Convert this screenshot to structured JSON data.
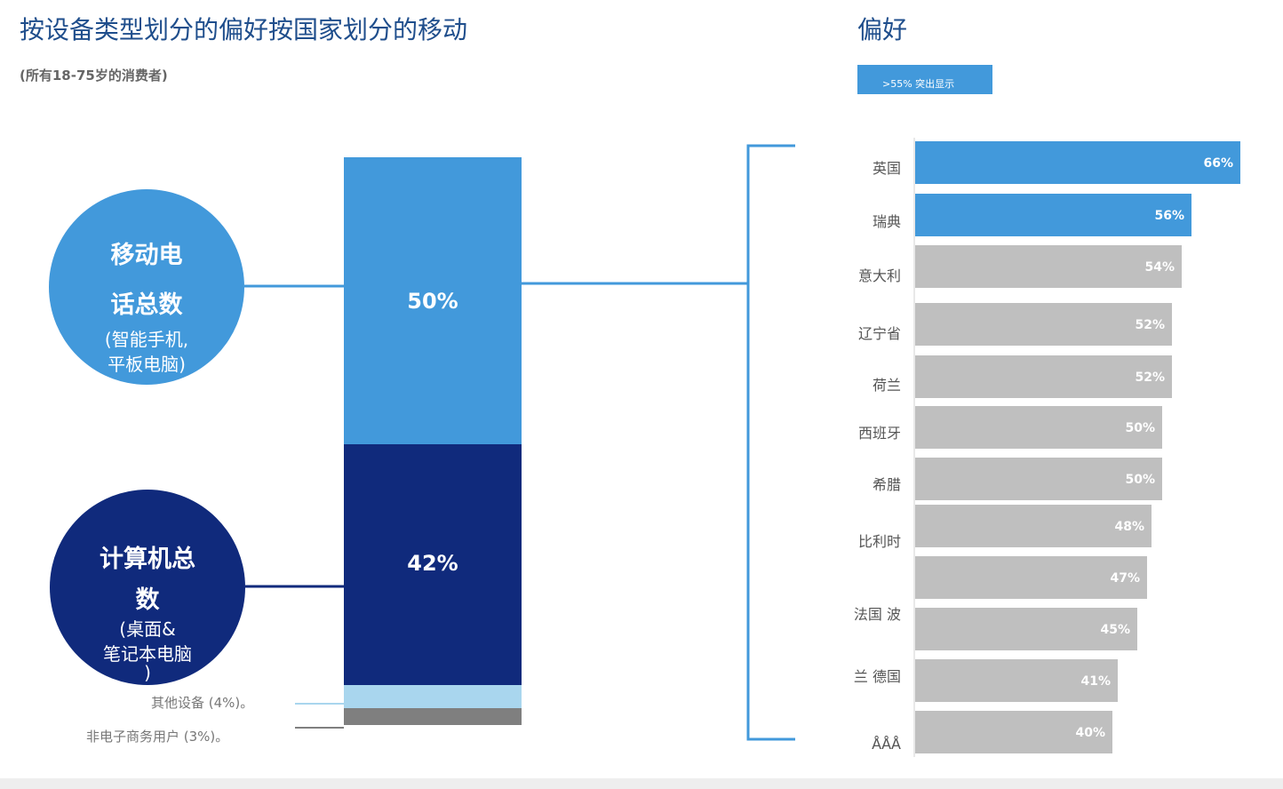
{
  "header": {
    "title_left": "按设备类型划分的偏好按国家划分的移动",
    "title_right": "偏好",
    "subtitle": "(所有18-75岁的消费者)",
    "highlight_badge": ">55% 突出显示"
  },
  "circles": {
    "mobile": {
      "line1": "移动电",
      "line2": "话总数",
      "line3": "(智能手机,",
      "line4": "平板电脑)"
    },
    "computer": {
      "line1": "计算机总",
      "line2": "数",
      "line3": "(桌面&",
      "line4": "笔记本电脑",
      "line5": ")"
    }
  },
  "notes": {
    "other_devices": "其他设备 (4%)。",
    "non_ecommerce": "非电子商务用户 (3%)。"
  },
  "colors": {
    "mobile": "#4299db",
    "computer": "#102a7c",
    "other": "#a9d6ee",
    "non_ecommerce": "#7f7f7f",
    "bar_gray": "#bfbfbf",
    "bar_highlight": "#4299db",
    "bracket": "#4299db"
  },
  "chart_data": [
    {
      "type": "bar",
      "stacked": true,
      "categories": [
        "移动电话总数",
        "计算机总数",
        "其他设备",
        "非电子商务用户"
      ],
      "values": [
        50,
        42,
        4,
        3
      ],
      "value_labels": [
        "50%",
        "42%",
        "",
        ""
      ]
    },
    {
      "type": "bar",
      "orientation": "horizontal",
      "title": "偏好",
      "categories": [
        "英国",
        "瑞典",
        "意大利",
        "辽宁省",
        "荷兰",
        "西班牙",
        "希腊",
        "比利时",
        "",
        "法国 波",
        "兰 德国",
        "ÅÅÅ"
      ],
      "values": [
        66,
        56,
        54,
        52,
        52,
        50,
        50,
        48,
        47,
        45,
        41,
        40
      ],
      "value_labels": [
        "66%",
        "56%",
        "54%",
        "52%",
        "52%",
        "50%",
        "50%",
        "48%",
        "47%",
        "45%",
        "41%",
        "40%"
      ],
      "highlight_threshold": 55,
      "xlim": [
        0,
        66
      ]
    }
  ]
}
